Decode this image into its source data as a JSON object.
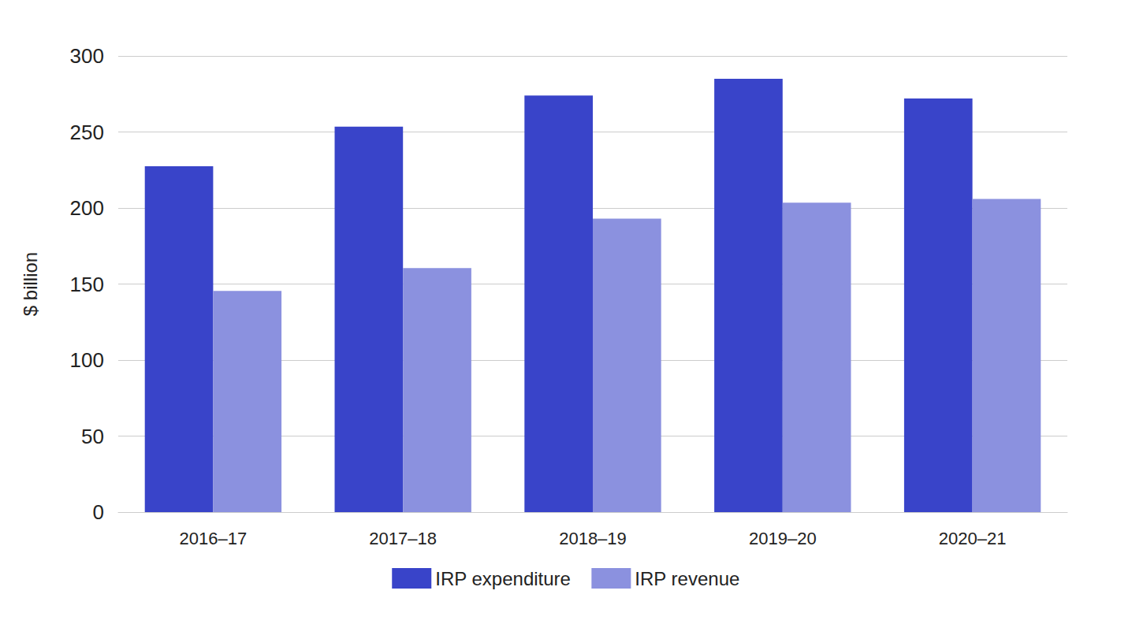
{
  "chart_data": {
    "type": "bar",
    "y_label": "$ billion",
    "categories": [
      "2016–17",
      "2017–18",
      "2018–19",
      "2019–20",
      "2020–21"
    ],
    "series": [
      {
        "name": "IRP expenditure",
        "color": "#3944c9",
        "values": [
          227.5,
          253.5,
          274,
          285,
          272
        ]
      },
      {
        "name": "IRP revenue",
        "color": "#8b91df",
        "values": [
          145.5,
          160.5,
          193,
          203.5,
          206
        ]
      }
    ],
    "ylim": [
      0,
      300
    ],
    "yticks": [
      0,
      50,
      100,
      150,
      200,
      250,
      300
    ],
    "grid": true,
    "legend": "bottom"
  }
}
